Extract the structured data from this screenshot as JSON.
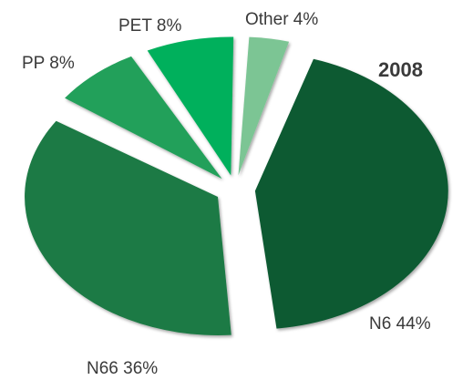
{
  "chart_data": {
    "type": "pie",
    "title": "2008",
    "slices": [
      {
        "label": "Other",
        "value": 4,
        "display": "Other 4%",
        "color": "#7cc594"
      },
      {
        "label": "N6",
        "value": 44,
        "display": "N6 44%",
        "color": "#0d5a32"
      },
      {
        "label": "N66",
        "value": 36,
        "display": "N66 36%",
        "color": "#1f7a45"
      },
      {
        "label": "PP",
        "value": 8,
        "display": "PP 8%",
        "color": "#22a05a"
      },
      {
        "label": "PET",
        "value": 8,
        "display": "PET 8%",
        "color": "#00b05c"
      }
    ],
    "exploded": true,
    "style": "3d-tilted"
  }
}
